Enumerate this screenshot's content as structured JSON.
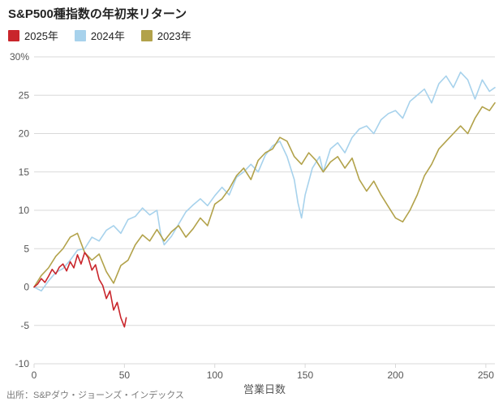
{
  "chart": {
    "type": "line",
    "title": "S&P500種指数の年初来リターン",
    "title_fontsize": 15,
    "title_fontweight": "bold",
    "xlabel": "営業日数",
    "xlabel_fontsize": 13,
    "ylim": [
      -10,
      30
    ],
    "yticks": [
      -10,
      -5,
      0,
      5,
      10,
      15,
      20,
      25,
      30
    ],
    "ytick_labels": [
      "-10",
      "-5",
      "0",
      "5",
      "10",
      "15",
      "20",
      "25",
      "30%"
    ],
    "xlim": [
      0,
      255
    ],
    "xticks": [
      0,
      50,
      100,
      150,
      200,
      250
    ],
    "xtick_labels": [
      "0",
      "50",
      "100",
      "150",
      "200",
      "250"
    ],
    "background_color": "#ffffff",
    "grid_color": "#d9d9d9",
    "axis_text_color": "#555555",
    "line_width": 1.6,
    "legend": {
      "items": [
        {
          "label": "2025年",
          "color": "#c9252b"
        },
        {
          "label": "2024年",
          "color": "#a7d2ec"
        },
        {
          "label": "2023年",
          "color": "#b2a24a"
        }
      ],
      "fontsize": 13
    },
    "series": [
      {
        "name": "2025年",
        "color": "#c9252b",
        "data": [
          [
            0,
            0
          ],
          [
            2,
            0.4
          ],
          [
            4,
            1.1
          ],
          [
            6,
            0.6
          ],
          [
            8,
            1.4
          ],
          [
            10,
            2.3
          ],
          [
            12,
            1.7
          ],
          [
            14,
            2.6
          ],
          [
            16,
            3.0
          ],
          [
            18,
            2.1
          ],
          [
            20,
            3.3
          ],
          [
            22,
            2.5
          ],
          [
            24,
            4.2
          ],
          [
            26,
            3.0
          ],
          [
            28,
            4.5
          ],
          [
            30,
            3.8
          ],
          [
            32,
            2.2
          ],
          [
            34,
            2.9
          ],
          [
            36,
            1.0
          ],
          [
            38,
            0.2
          ],
          [
            40,
            -1.5
          ],
          [
            42,
            -0.5
          ],
          [
            44,
            -3.0
          ],
          [
            46,
            -2.0
          ],
          [
            48,
            -4.0
          ],
          [
            50,
            -5.2
          ],
          [
            51,
            -4.0
          ]
        ]
      },
      {
        "name": "2024年",
        "color": "#a7d2ec",
        "data": [
          [
            0,
            0
          ],
          [
            4,
            -0.5
          ],
          [
            8,
            0.8
          ],
          [
            12,
            1.9
          ],
          [
            16,
            2.4
          ],
          [
            20,
            3.5
          ],
          [
            24,
            4.8
          ],
          [
            28,
            5.0
          ],
          [
            32,
            6.5
          ],
          [
            36,
            6.0
          ],
          [
            40,
            7.4
          ],
          [
            44,
            8.0
          ],
          [
            48,
            7.0
          ],
          [
            52,
            8.8
          ],
          [
            56,
            9.2
          ],
          [
            60,
            10.3
          ],
          [
            64,
            9.4
          ],
          [
            68,
            10.0
          ],
          [
            70,
            7.0
          ],
          [
            72,
            5.5
          ],
          [
            76,
            6.6
          ],
          [
            80,
            8.2
          ],
          [
            84,
            9.8
          ],
          [
            88,
            10.7
          ],
          [
            92,
            11.5
          ],
          [
            96,
            10.6
          ],
          [
            100,
            11.9
          ],
          [
            104,
            13.0
          ],
          [
            108,
            12.0
          ],
          [
            112,
            14.3
          ],
          [
            116,
            15.0
          ],
          [
            120,
            16.0
          ],
          [
            124,
            15.0
          ],
          [
            128,
            17.2
          ],
          [
            132,
            18.4
          ],
          [
            136,
            19.0
          ],
          [
            140,
            17.0
          ],
          [
            144,
            14.0
          ],
          [
            146,
            11.0
          ],
          [
            148,
            9.0
          ],
          [
            150,
            12.0
          ],
          [
            154,
            15.5
          ],
          [
            158,
            17.0
          ],
          [
            160,
            15.0
          ],
          [
            164,
            18.0
          ],
          [
            168,
            18.8
          ],
          [
            172,
            17.5
          ],
          [
            176,
            19.5
          ],
          [
            180,
            20.6
          ],
          [
            184,
            21.0
          ],
          [
            188,
            20.0
          ],
          [
            192,
            21.8
          ],
          [
            196,
            22.6
          ],
          [
            200,
            23.0
          ],
          [
            204,
            22.0
          ],
          [
            208,
            24.2
          ],
          [
            212,
            25.0
          ],
          [
            216,
            25.8
          ],
          [
            220,
            24.0
          ],
          [
            224,
            26.5
          ],
          [
            228,
            27.5
          ],
          [
            232,
            26.0
          ],
          [
            236,
            28.0
          ],
          [
            240,
            27.0
          ],
          [
            244,
            24.5
          ],
          [
            248,
            27.0
          ],
          [
            252,
            25.5
          ],
          [
            255,
            26.0
          ]
        ]
      },
      {
        "name": "2023年",
        "color": "#b2a24a",
        "data": [
          [
            0,
            0
          ],
          [
            4,
            1.5
          ],
          [
            8,
            2.5
          ],
          [
            12,
            4.0
          ],
          [
            16,
            5.0
          ],
          [
            20,
            6.5
          ],
          [
            24,
            7.0
          ],
          [
            28,
            4.5
          ],
          [
            32,
            3.5
          ],
          [
            36,
            4.3
          ],
          [
            40,
            2.0
          ],
          [
            44,
            0.5
          ],
          [
            48,
            2.8
          ],
          [
            52,
            3.5
          ],
          [
            56,
            5.5
          ],
          [
            60,
            6.8
          ],
          [
            64,
            6.0
          ],
          [
            68,
            7.5
          ],
          [
            72,
            6.0
          ],
          [
            76,
            7.2
          ],
          [
            80,
            8.0
          ],
          [
            84,
            6.5
          ],
          [
            88,
            7.6
          ],
          [
            92,
            9.0
          ],
          [
            96,
            8.0
          ],
          [
            100,
            10.8
          ],
          [
            104,
            11.5
          ],
          [
            108,
            12.8
          ],
          [
            112,
            14.5
          ],
          [
            116,
            15.5
          ],
          [
            120,
            14.0
          ],
          [
            124,
            16.5
          ],
          [
            128,
            17.5
          ],
          [
            132,
            18.0
          ],
          [
            136,
            19.5
          ],
          [
            140,
            19.0
          ],
          [
            144,
            17.0
          ],
          [
            148,
            16.0
          ],
          [
            152,
            17.5
          ],
          [
            156,
            16.5
          ],
          [
            160,
            15.0
          ],
          [
            164,
            16.3
          ],
          [
            168,
            17.0
          ],
          [
            172,
            15.5
          ],
          [
            176,
            16.8
          ],
          [
            180,
            14.0
          ],
          [
            184,
            12.5
          ],
          [
            188,
            13.8
          ],
          [
            192,
            12.0
          ],
          [
            196,
            10.5
          ],
          [
            200,
            9.0
          ],
          [
            204,
            8.5
          ],
          [
            208,
            10.0
          ],
          [
            212,
            12.0
          ],
          [
            216,
            14.5
          ],
          [
            220,
            16.0
          ],
          [
            224,
            18.0
          ],
          [
            228,
            19.0
          ],
          [
            232,
            20.0
          ],
          [
            236,
            21.0
          ],
          [
            240,
            20.0
          ],
          [
            244,
            22.0
          ],
          [
            248,
            23.5
          ],
          [
            252,
            23.0
          ],
          [
            255,
            24.0
          ]
        ]
      }
    ],
    "source": "出所：S&Pダウ・ジョーンズ・インデックス",
    "source_fontsize": 11,
    "source_color": "#7a7a7a"
  }
}
